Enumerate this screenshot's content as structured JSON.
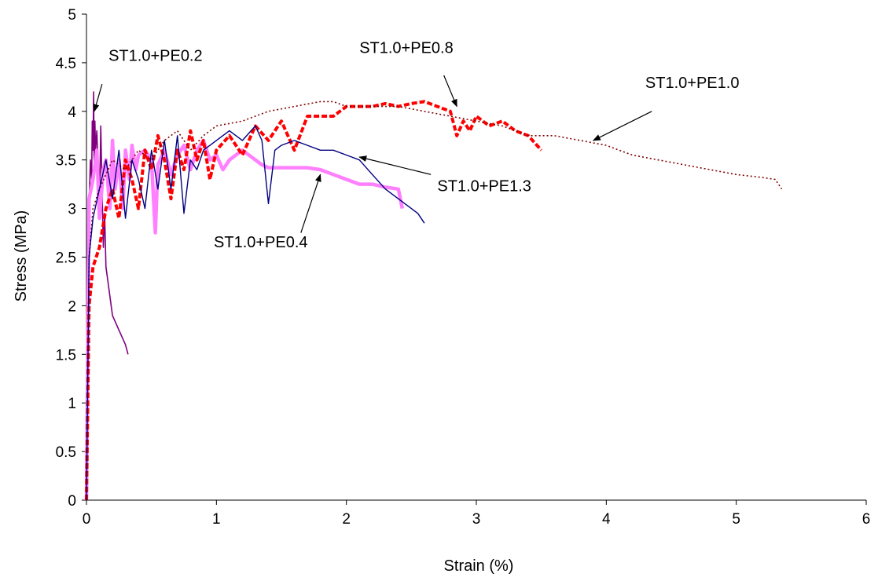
{
  "chart_data": {
    "type": "line",
    "title": "",
    "xlabel": "Strain (%)",
    "ylabel": "Stress (MPa)",
    "xlim": [
      0,
      6
    ],
    "ylim": [
      0,
      5
    ],
    "xticks": [
      0,
      1,
      2,
      3,
      4,
      5,
      6
    ],
    "yticks": [
      0,
      0.5,
      1,
      1.5,
      2,
      2.5,
      3,
      3.5,
      4,
      4.5,
      5
    ],
    "xtick_labels": [
      "0",
      "1",
      "2",
      "3",
      "4",
      "5",
      "6"
    ],
    "ytick_labels": [
      "0",
      "0.5",
      "1",
      "1.5",
      "2",
      "2.5",
      "3",
      "3.5",
      "4",
      "4.5",
      "5"
    ],
    "grid": false,
    "legend": "none",
    "series": [
      {
        "name": "ST1.0+PE0.2",
        "color": "#800080",
        "style": "solid",
        "width": 1.6,
        "x": [
          0,
          0.01,
          0.02,
          0.03,
          0.04,
          0.045,
          0.05,
          0.055,
          0.06,
          0.065,
          0.07,
          0.08,
          0.09,
          0.1,
          0.11,
          0.12,
          0.13,
          0.14,
          0.15,
          0.17,
          0.2,
          0.25,
          0.3,
          0.32
        ],
        "y": [
          0,
          2.0,
          3.0,
          3.5,
          3.3,
          3.9,
          3.6,
          4.2,
          3.4,
          3.9,
          3.6,
          3.8,
          3.4,
          3.0,
          3.85,
          3.2,
          2.6,
          2.95,
          2.4,
          2.2,
          1.9,
          1.75,
          1.6,
          1.5
        ]
      },
      {
        "name": "ST1.0+PE0.4",
        "color": "#ff80ff",
        "style": "solid",
        "width": 4.5,
        "x": [
          0,
          0.02,
          0.05,
          0.08,
          0.1,
          0.13,
          0.15,
          0.18,
          0.2,
          0.22,
          0.25,
          0.28,
          0.3,
          0.33,
          0.35,
          0.38,
          0.4,
          0.45,
          0.5,
          0.53,
          0.55,
          0.6,
          0.65,
          0.7,
          0.75,
          0.8,
          0.85,
          0.9,
          0.95,
          1.0,
          1.05,
          1.1,
          1.15,
          1.2,
          1.25,
          1.3,
          1.35,
          1.4,
          1.5,
          1.6,
          1.7,
          1.8,
          1.9,
          2.0,
          2.1,
          2.2,
          2.3,
          2.4,
          2.43
        ],
        "y": [
          0,
          3.1,
          3.3,
          3.6,
          2.9,
          3.4,
          3.5,
          3.0,
          3.7,
          3.2,
          3.5,
          3.0,
          3.6,
          3.3,
          3.65,
          3.4,
          3.55,
          3.6,
          3.5,
          2.75,
          3.45,
          3.6,
          3.35,
          3.55,
          3.65,
          3.4,
          3.6,
          3.7,
          3.5,
          3.55,
          3.4,
          3.5,
          3.55,
          3.6,
          3.55,
          3.5,
          3.45,
          3.42,
          3.42,
          3.42,
          3.42,
          3.4,
          3.35,
          3.3,
          3.25,
          3.25,
          3.22,
          3.2,
          3.0
        ]
      },
      {
        "name": "ST1.0+PE0.8",
        "color": "#ff0000",
        "style": "dashed",
        "width": 4.0,
        "x": [
          0,
          0.02,
          0.05,
          0.1,
          0.15,
          0.2,
          0.25,
          0.3,
          0.35,
          0.4,
          0.45,
          0.5,
          0.55,
          0.6,
          0.65,
          0.7,
          0.75,
          0.8,
          0.85,
          0.9,
          0.95,
          1.0,
          1.1,
          1.2,
          1.3,
          1.4,
          1.5,
          1.6,
          1.7,
          1.8,
          1.9,
          2.0,
          2.1,
          2.2,
          2.3,
          2.4,
          2.5,
          2.6,
          2.7,
          2.8,
          2.85,
          2.9,
          2.95,
          3.0,
          3.1,
          3.2,
          3.3,
          3.4,
          3.5
        ],
        "y": [
          0,
          2.0,
          2.4,
          2.6,
          3.0,
          3.2,
          2.9,
          3.5,
          3.3,
          3.0,
          3.6,
          3.4,
          3.75,
          3.5,
          3.1,
          3.6,
          3.4,
          3.8,
          3.5,
          3.7,
          3.3,
          3.6,
          3.75,
          3.55,
          3.85,
          3.7,
          3.9,
          3.6,
          3.95,
          3.95,
          3.95,
          4.05,
          4.05,
          4.05,
          4.08,
          4.05,
          4.08,
          4.1,
          4.05,
          4.0,
          3.75,
          3.9,
          3.8,
          3.95,
          3.85,
          3.9,
          3.8,
          3.75,
          3.6
        ]
      },
      {
        "name": "ST1.0+PE1.0",
        "color": "#800000",
        "style": "dotted",
        "width": 1.6,
        "x": [
          0,
          0.02,
          0.05,
          0.1,
          0.2,
          0.3,
          0.4,
          0.5,
          0.6,
          0.7,
          0.8,
          0.9,
          1.0,
          1.2,
          1.4,
          1.6,
          1.8,
          1.9,
          2.0,
          2.2,
          2.4,
          2.6,
          2.8,
          3.0,
          3.2,
          3.4,
          3.6,
          3.8,
          4.0,
          4.2,
          4.4,
          4.6,
          4.8,
          5.0,
          5.2,
          5.3,
          5.35
        ],
        "y": [
          0,
          2.5,
          3.0,
          3.2,
          3.5,
          3.4,
          3.6,
          3.5,
          3.7,
          3.8,
          3.6,
          3.75,
          3.85,
          3.9,
          4.0,
          4.05,
          4.1,
          4.1,
          4.05,
          4.05,
          4.05,
          4.0,
          3.95,
          3.9,
          3.85,
          3.75,
          3.75,
          3.7,
          3.65,
          3.55,
          3.5,
          3.45,
          3.4,
          3.35,
          3.32,
          3.3,
          3.2
        ]
      },
      {
        "name": "ST1.0+PE1.3",
        "color": "#000080",
        "style": "solid",
        "width": 1.4,
        "x": [
          0,
          0.02,
          0.05,
          0.1,
          0.15,
          0.2,
          0.25,
          0.3,
          0.35,
          0.4,
          0.45,
          0.5,
          0.55,
          0.6,
          0.65,
          0.7,
          0.75,
          0.8,
          0.85,
          0.9,
          1.0,
          1.1,
          1.2,
          1.3,
          1.35,
          1.4,
          1.45,
          1.5,
          1.6,
          1.7,
          1.8,
          1.9,
          2.0,
          2.1,
          2.2,
          2.3,
          2.4,
          2.5,
          2.55,
          2.6
        ],
        "y": [
          0,
          2.5,
          2.9,
          3.2,
          3.5,
          3.1,
          3.6,
          2.9,
          3.5,
          3.3,
          3.0,
          3.6,
          3.2,
          3.7,
          3.2,
          3.75,
          2.95,
          3.5,
          3.4,
          3.6,
          3.7,
          3.8,
          3.7,
          3.85,
          3.7,
          3.05,
          3.6,
          3.65,
          3.7,
          3.65,
          3.6,
          3.6,
          3.55,
          3.5,
          3.35,
          3.2,
          3.1,
          3.0,
          2.95,
          2.85
        ]
      }
    ],
    "annotations": [
      {
        "text": "ST1.0+PE0.2",
        "text_at": [
          0.17,
          4.52
        ],
        "arrow_from": [
          0.12,
          4.28
        ],
        "arrow_to": [
          0.06,
          4.0
        ]
      },
      {
        "text": "ST1.0+PE0.8",
        "text_at": [
          2.1,
          4.6
        ],
        "arrow_from": [
          2.75,
          4.37
        ],
        "arrow_to": [
          2.85,
          4.05
        ]
      },
      {
        "text": "ST1.0+PE1.0",
        "text_at": [
          4.3,
          4.24
        ],
        "arrow_from": [
          4.35,
          4.0
        ],
        "arrow_to": [
          3.9,
          3.7
        ]
      },
      {
        "text": "ST1.0+PE1.3",
        "text_at": [
          2.7,
          3.18
        ],
        "arrow_from": [
          2.65,
          3.35
        ],
        "arrow_to": [
          2.1,
          3.53
        ]
      },
      {
        "text": "ST1.0+PE0.4",
        "text_at": [
          0.98,
          2.6
        ],
        "arrow_from": [
          1.65,
          2.75
        ],
        "arrow_to": [
          1.8,
          3.35
        ]
      }
    ]
  }
}
